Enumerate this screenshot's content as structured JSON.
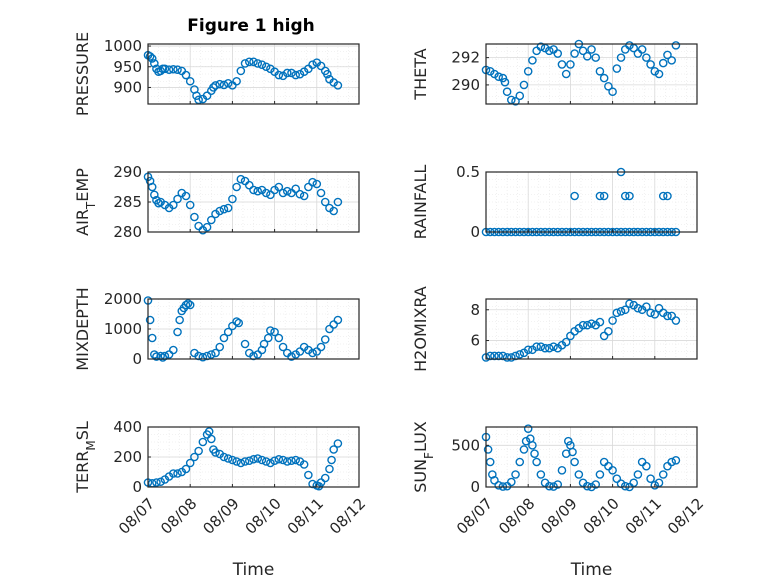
{
  "figure": {
    "title": "Figure 1 high"
  },
  "style": {
    "marker_color": "#0072bd",
    "axis_color": "#262626",
    "grid_color": "#d9d9d9"
  },
  "chart_data": [
    {
      "type": "scatter",
      "title": "Figure 1 high",
      "ylabel": "PRESSURE",
      "ylabel_sub": "",
      "ylim": [
        860,
        1005
      ],
      "yticks": [
        900,
        950,
        1000
      ],
      "xlim": [
        0,
        5
      ],
      "xticks": [
        0,
        1,
        2,
        3,
        4,
        5
      ],
      "xticklabels": [
        "08/07",
        "08/08",
        "08/09",
        "08/10",
        "08/11",
        "08/12"
      ],
      "xlabel": "",
      "grid": true,
      "series": [
        {
          "x": [
            0.0,
            0.05,
            0.1,
            0.15,
            0.2,
            0.25,
            0.3,
            0.35,
            0.4,
            0.5,
            0.6,
            0.7,
            0.8,
            0.9,
            1.0,
            1.1,
            1.15,
            1.2,
            1.3,
            1.4,
            1.5,
            1.55,
            1.6,
            1.7,
            1.8,
            1.9,
            2.0,
            2.1,
            2.2,
            2.3,
            2.4,
            2.5,
            2.6,
            2.7,
            2.8,
            2.9,
            3.0,
            3.1,
            3.2,
            3.3,
            3.4,
            3.5,
            3.6,
            3.7,
            3.8,
            3.9,
            4.0,
            4.1,
            4.2,
            4.25,
            4.3,
            4.4,
            4.5
          ],
          "y": [
            978,
            975,
            970,
            958,
            945,
            938,
            940,
            945,
            945,
            943,
            944,
            943,
            940,
            930,
            915,
            895,
            880,
            870,
            872,
            880,
            892,
            900,
            905,
            908,
            906,
            910,
            905,
            915,
            940,
            958,
            962,
            962,
            958,
            955,
            950,
            945,
            938,
            930,
            928,
            935,
            935,
            930,
            932,
            938,
            945,
            955,
            960,
            952,
            940,
            932,
            920,
            912,
            905
          ]
        }
      ]
    },
    {
      "type": "scatter",
      "ylabel": "THETA",
      "ylabel_sub": "",
      "ylim": [
        288.6,
        293.0
      ],
      "yticks": [
        290,
        292
      ],
      "xlim": [
        0,
        5
      ],
      "xticks": [
        0,
        1,
        2,
        3,
        4,
        5
      ],
      "xticklabels": [
        "08/07",
        "08/08",
        "08/09",
        "08/10",
        "08/11",
        "08/12"
      ],
      "xlabel": "",
      "grid": true,
      "series": [
        {
          "x": [
            0.0,
            0.1,
            0.2,
            0.3,
            0.4,
            0.45,
            0.5,
            0.6,
            0.7,
            0.8,
            0.9,
            1.0,
            1.1,
            1.2,
            1.3,
            1.4,
            1.5,
            1.6,
            1.7,
            1.8,
            1.9,
            2.0,
            2.1,
            2.2,
            2.3,
            2.4,
            2.5,
            2.6,
            2.7,
            2.8,
            2.9,
            3.0,
            3.1,
            3.2,
            3.3,
            3.4,
            3.5,
            3.6,
            3.7,
            3.8,
            3.9,
            4.0,
            4.1,
            4.2,
            4.3,
            4.4,
            4.5
          ],
          "y": [
            291.1,
            291.0,
            290.8,
            290.6,
            290.5,
            290.2,
            289.5,
            288.9,
            288.8,
            289.2,
            290.0,
            291.0,
            291.8,
            292.5,
            292.8,
            292.7,
            292.5,
            292.6,
            292.3,
            291.5,
            290.8,
            291.5,
            292.3,
            293.0,
            292.5,
            292.1,
            292.6,
            292.0,
            291.0,
            290.5,
            289.9,
            289.5,
            291.2,
            292.0,
            292.6,
            292.9,
            292.7,
            292.3,
            292.6,
            292.0,
            291.5,
            291.0,
            290.8,
            291.6,
            292.2,
            291.8,
            292.9
          ]
        }
      ]
    },
    {
      "type": "scatter",
      "ylabel": "AIR",
      "ylabel_sub": "T",
      "ylabel_tail": "EMP",
      "ylim": [
        280,
        290
      ],
      "yticks": [
        280,
        285,
        290
      ],
      "xlim": [
        0,
        5
      ],
      "xticks": [
        0,
        1,
        2,
        3,
        4,
        5
      ],
      "xticklabels": [
        "08/07",
        "08/08",
        "08/09",
        "08/10",
        "08/11",
        "08/12"
      ],
      "xlabel": "",
      "grid": true,
      "series": [
        {
          "x": [
            0.0,
            0.05,
            0.1,
            0.15,
            0.2,
            0.25,
            0.3,
            0.4,
            0.5,
            0.6,
            0.7,
            0.8,
            0.9,
            1.0,
            1.1,
            1.2,
            1.3,
            1.4,
            1.5,
            1.6,
            1.7,
            1.8,
            1.9,
            2.0,
            2.1,
            2.2,
            2.3,
            2.4,
            2.5,
            2.6,
            2.7,
            2.8,
            2.9,
            3.0,
            3.1,
            3.2,
            3.3,
            3.4,
            3.5,
            3.6,
            3.7,
            3.8,
            3.9,
            4.0,
            4.1,
            4.2,
            4.3,
            4.4,
            4.5
          ],
          "y": [
            289.2,
            288.5,
            287.5,
            286.2,
            285.3,
            284.8,
            285.0,
            284.5,
            284.0,
            284.5,
            285.5,
            286.5,
            286.0,
            284.5,
            282.5,
            281.0,
            280.3,
            280.8,
            282.0,
            283.0,
            283.5,
            283.8,
            284.0,
            285.5,
            287.5,
            288.8,
            288.5,
            287.8,
            287.0,
            286.8,
            287.0,
            286.5,
            286.2,
            287.0,
            287.5,
            286.5,
            286.8,
            286.5,
            287.2,
            286.3,
            286.0,
            287.5,
            288.3,
            288.0,
            286.5,
            285.0,
            284.0,
            283.5,
            285.0
          ]
        }
      ]
    },
    {
      "type": "scatter",
      "ylabel": "RAINFALL",
      "ylabel_sub": "",
      "ylim": [
        0,
        0.5
      ],
      "yticks": [
        0,
        0.5
      ],
      "xlim": [
        0,
        5
      ],
      "xticks": [
        0,
        1,
        2,
        3,
        4,
        5
      ],
      "xticklabels": [
        "08/07",
        "08/08",
        "08/09",
        "08/10",
        "08/11",
        "08/12"
      ],
      "xlabel": "",
      "grid": true,
      "series": [
        {
          "x": [
            0.0,
            0.1,
            0.2,
            0.3,
            0.4,
            0.5,
            0.6,
            0.7,
            0.8,
            0.9,
            1.0,
            1.1,
            1.2,
            1.3,
            1.4,
            1.5,
            1.6,
            1.7,
            1.8,
            1.9,
            2.0,
            2.1,
            2.2,
            2.3,
            2.4,
            2.5,
            2.6,
            2.7,
            2.8,
            2.9,
            3.0,
            3.1,
            3.2,
            3.3,
            3.4,
            3.5,
            3.6,
            3.7,
            3.8,
            3.9,
            4.0,
            4.1,
            4.2,
            4.3,
            4.4,
            4.5,
            2.1,
            2.7,
            2.8,
            3.2,
            3.3,
            3.4,
            4.2,
            4.3
          ],
          "y": [
            0,
            0,
            0,
            0,
            0,
            0,
            0,
            0,
            0,
            0,
            0,
            0,
            0,
            0,
            0,
            0,
            0,
            0,
            0,
            0,
            0,
            0,
            0,
            0,
            0,
            0,
            0,
            0,
            0,
            0,
            0,
            0,
            0,
            0,
            0,
            0,
            0,
            0,
            0,
            0,
            0,
            0,
            0,
            0,
            0,
            0,
            0.3,
            0.3,
            0.3,
            0.5,
            0.3,
            0.3,
            0.3,
            0.3
          ]
        }
      ]
    },
    {
      "type": "scatter",
      "ylabel": "MIXDEPTH",
      "ylabel_sub": "",
      "ylim": [
        0,
        2000
      ],
      "yticks": [
        0,
        1000,
        2000
      ],
      "xlim": [
        0,
        5
      ],
      "xticks": [
        0,
        1,
        2,
        3,
        4,
        5
      ],
      "xticklabels": [
        "08/07",
        "08/08",
        "08/09",
        "08/10",
        "08/11",
        "08/12"
      ],
      "xlabel": "",
      "grid": true,
      "series": [
        {
          "x": [
            0.0,
            0.05,
            0.1,
            0.15,
            0.2,
            0.3,
            0.35,
            0.4,
            0.5,
            0.6,
            0.7,
            0.75,
            0.8,
            0.85,
            0.9,
            0.95,
            1.0,
            1.1,
            1.2,
            1.3,
            1.4,
            1.5,
            1.6,
            1.7,
            1.8,
            1.9,
            2.0,
            2.1,
            2.15,
            2.3,
            2.4,
            2.5,
            2.6,
            2.7,
            2.75,
            2.85,
            2.9,
            3.0,
            3.1,
            3.2,
            3.3,
            3.4,
            3.5,
            3.6,
            3.7,
            3.8,
            3.9,
            4.0,
            4.1,
            4.2,
            4.3,
            4.4,
            4.5
          ],
          "y": [
            1950,
            1300,
            700,
            150,
            80,
            100,
            50,
            100,
            150,
            300,
            900,
            1300,
            1600,
            1700,
            1800,
            1850,
            1800,
            200,
            100,
            60,
            100,
            150,
            200,
            400,
            700,
            900,
            1100,
            1250,
            1200,
            500,
            200,
            100,
            150,
            300,
            500,
            700,
            950,
            900,
            700,
            400,
            200,
            80,
            150,
            250,
            400,
            300,
            200,
            250,
            400,
            650,
            1000,
            1150,
            1300
          ]
        }
      ]
    },
    {
      "type": "scatter",
      "ylabel": "H2OMIXRA",
      "ylabel_sub": "",
      "ylim": [
        4.8,
        8.7
      ],
      "yticks": [
        6,
        8
      ],
      "xlim": [
        0,
        5
      ],
      "xticks": [
        0,
        1,
        2,
        3,
        4,
        5
      ],
      "xticklabels": [
        "08/07",
        "08/08",
        "08/09",
        "08/10",
        "08/11",
        "08/12"
      ],
      "xlabel": "",
      "grid": true,
      "series": [
        {
          "x": [
            0.0,
            0.1,
            0.2,
            0.3,
            0.4,
            0.5,
            0.6,
            0.7,
            0.8,
            0.9,
            1.0,
            1.1,
            1.2,
            1.3,
            1.4,
            1.5,
            1.6,
            1.7,
            1.8,
            1.9,
            2.0,
            2.1,
            2.2,
            2.3,
            2.4,
            2.5,
            2.6,
            2.7,
            2.8,
            2.9,
            3.0,
            3.1,
            3.2,
            3.3,
            3.4,
            3.5,
            3.6,
            3.7,
            3.8,
            3.9,
            4.0,
            4.1,
            4.2,
            4.3,
            4.4,
            4.5
          ],
          "y": [
            4.9,
            5.0,
            5.0,
            5.0,
            5.0,
            4.9,
            4.9,
            5.0,
            5.1,
            5.2,
            5.4,
            5.4,
            5.6,
            5.6,
            5.5,
            5.5,
            5.6,
            5.5,
            5.7,
            5.9,
            6.3,
            6.6,
            6.8,
            7.0,
            7.0,
            7.1,
            7.0,
            7.2,
            6.3,
            6.6,
            7.3,
            7.8,
            7.9,
            8.0,
            8.4,
            8.3,
            8.1,
            8.0,
            8.2,
            7.8,
            7.7,
            8.1,
            7.8,
            7.6,
            7.6,
            7.3
          ]
        }
      ]
    },
    {
      "type": "scatter",
      "ylabel": "TERR",
      "ylabel_sub": "M",
      "ylabel_tail": "SL",
      "ylim": [
        0,
        400
      ],
      "yticks": [
        0,
        200,
        400
      ],
      "xlim": [
        0,
        5
      ],
      "xticks": [
        0,
        1,
        2,
        3,
        4,
        5
      ],
      "xticklabels": [
        "08/07",
        "08/08",
        "08/09",
        "08/10",
        "08/11",
        "08/12"
      ],
      "xlabel": "Time",
      "grid": true,
      "series": [
        {
          "x": [
            0.0,
            0.1,
            0.2,
            0.3,
            0.4,
            0.5,
            0.6,
            0.7,
            0.8,
            0.9,
            1.0,
            1.1,
            1.2,
            1.3,
            1.4,
            1.45,
            1.5,
            1.55,
            1.6,
            1.7,
            1.8,
            1.9,
            2.0,
            2.1,
            2.2,
            2.3,
            2.4,
            2.5,
            2.6,
            2.7,
            2.8,
            2.9,
            3.0,
            3.1,
            3.2,
            3.3,
            3.4,
            3.5,
            3.6,
            3.7,
            3.8,
            3.9,
            4.0,
            4.05,
            4.1,
            4.2,
            4.3,
            4.35,
            4.4,
            4.5
          ],
          "y": [
            30,
            25,
            30,
            35,
            50,
            70,
            90,
            90,
            100,
            120,
            160,
            200,
            240,
            300,
            350,
            370,
            320,
            250,
            230,
            220,
            200,
            190,
            180,
            170,
            160,
            170,
            175,
            185,
            190,
            180,
            170,
            160,
            175,
            185,
            180,
            170,
            175,
            180,
            170,
            150,
            80,
            20,
            10,
            5,
            30,
            60,
            120,
            180,
            250,
            290
          ]
        }
      ]
    },
    {
      "type": "scatter",
      "ylabel": "SUN",
      "ylabel_sub": "F",
      "ylabel_tail": "LUX",
      "ylim": [
        0,
        720
      ],
      "yticks": [
        0,
        500
      ],
      "xlim": [
        0,
        5
      ],
      "xticks": [
        0,
        1,
        2,
        3,
        4,
        5
      ],
      "xticklabels": [
        "08/07",
        "08/08",
        "08/09",
        "08/10",
        "08/11",
        "08/12"
      ],
      "xlabel": "Time",
      "grid": true,
      "series": [
        {
          "x": [
            0.0,
            0.05,
            0.1,
            0.15,
            0.2,
            0.3,
            0.4,
            0.5,
            0.6,
            0.7,
            0.8,
            0.9,
            0.95,
            1.0,
            1.05,
            1.1,
            1.15,
            1.2,
            1.3,
            1.4,
            1.5,
            1.6,
            1.7,
            1.8,
            1.9,
            1.95,
            2.0,
            2.05,
            2.1,
            2.2,
            2.3,
            2.4,
            2.5,
            2.6,
            2.7,
            2.8,
            2.9,
            3.0,
            3.1,
            3.2,
            3.3,
            3.4,
            3.5,
            3.6,
            3.7,
            3.8,
            3.9,
            4.0,
            4.1,
            4.2,
            4.3,
            4.4,
            4.5
          ],
          "y": [
            600,
            450,
            300,
            150,
            80,
            20,
            5,
            10,
            60,
            150,
            300,
            450,
            550,
            700,
            580,
            500,
            400,
            300,
            150,
            50,
            10,
            5,
            30,
            200,
            400,
            550,
            500,
            420,
            300,
            150,
            50,
            10,
            0,
            30,
            150,
            300,
            250,
            200,
            100,
            40,
            10,
            0,
            50,
            150,
            300,
            250,
            100,
            20,
            50,
            150,
            250,
            300,
            320
          ]
        }
      ]
    }
  ]
}
